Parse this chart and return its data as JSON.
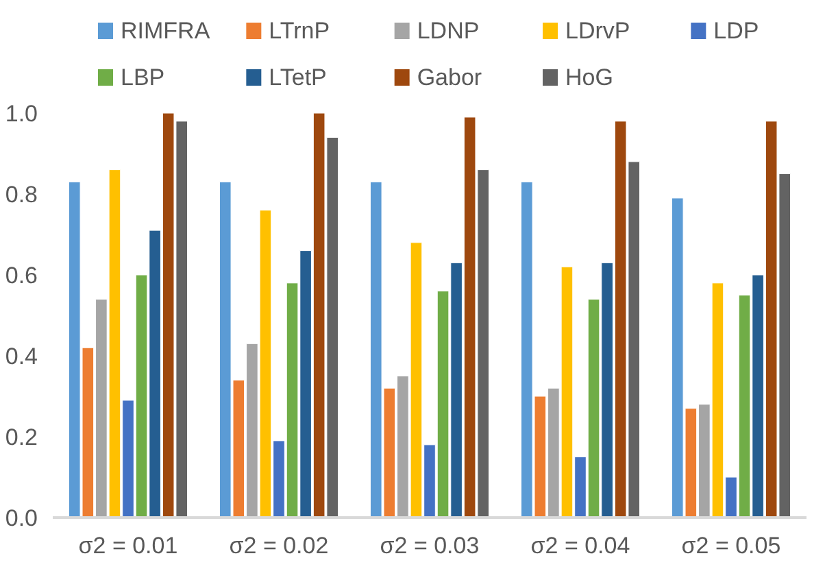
{
  "chart_data": {
    "type": "bar",
    "categories": [
      "σ2 = 0.01",
      "σ2 = 0.02",
      "σ2 = 0.03",
      "σ2 = 0.04",
      "σ2 = 0.05"
    ],
    "series": [
      {
        "name": "RIMFRA",
        "color": "#5b9bd5",
        "values": [
          0.83,
          0.83,
          0.83,
          0.83,
          0.79
        ]
      },
      {
        "name": "LTrnP",
        "color": "#ed7d31",
        "values": [
          0.42,
          0.34,
          0.32,
          0.3,
          0.27
        ]
      },
      {
        "name": "LDNP",
        "color": "#a5a5a5",
        "values": [
          0.54,
          0.43,
          0.35,
          0.32,
          0.28
        ]
      },
      {
        "name": "LDrvP",
        "color": "#ffc000",
        "values": [
          0.86,
          0.76,
          0.68,
          0.62,
          0.58
        ]
      },
      {
        "name": "LDP",
        "color": "#4472c4",
        "values": [
          0.29,
          0.19,
          0.18,
          0.15,
          0.1
        ]
      },
      {
        "name": "LBP",
        "color": "#70ad47",
        "values": [
          0.6,
          0.58,
          0.56,
          0.54,
          0.55
        ]
      },
      {
        "name": "LTetP",
        "color": "#255e91",
        "values": [
          0.71,
          0.66,
          0.63,
          0.63,
          0.6
        ]
      },
      {
        "name": "Gabor",
        "color": "#9e480e",
        "values": [
          1.0,
          1.0,
          0.99,
          0.98,
          0.98
        ]
      },
      {
        "name": "HoG",
        "color": "#636363",
        "values": [
          0.98,
          0.94,
          0.86,
          0.88,
          0.85
        ]
      }
    ],
    "ylim": [
      0,
      1.0
    ],
    "yticks": [
      {
        "value": 0,
        "label": "0.0"
      },
      {
        "value": 0.2,
        "label": "0.2"
      },
      {
        "value": 0.4,
        "label": "0.4"
      },
      {
        "value": 0.6,
        "label": "0.6"
      },
      {
        "value": 0.8,
        "label": "0.8"
      },
      {
        "value": 1.0,
        "label": "1.0"
      }
    ],
    "grid": false,
    "legend": "top"
  }
}
